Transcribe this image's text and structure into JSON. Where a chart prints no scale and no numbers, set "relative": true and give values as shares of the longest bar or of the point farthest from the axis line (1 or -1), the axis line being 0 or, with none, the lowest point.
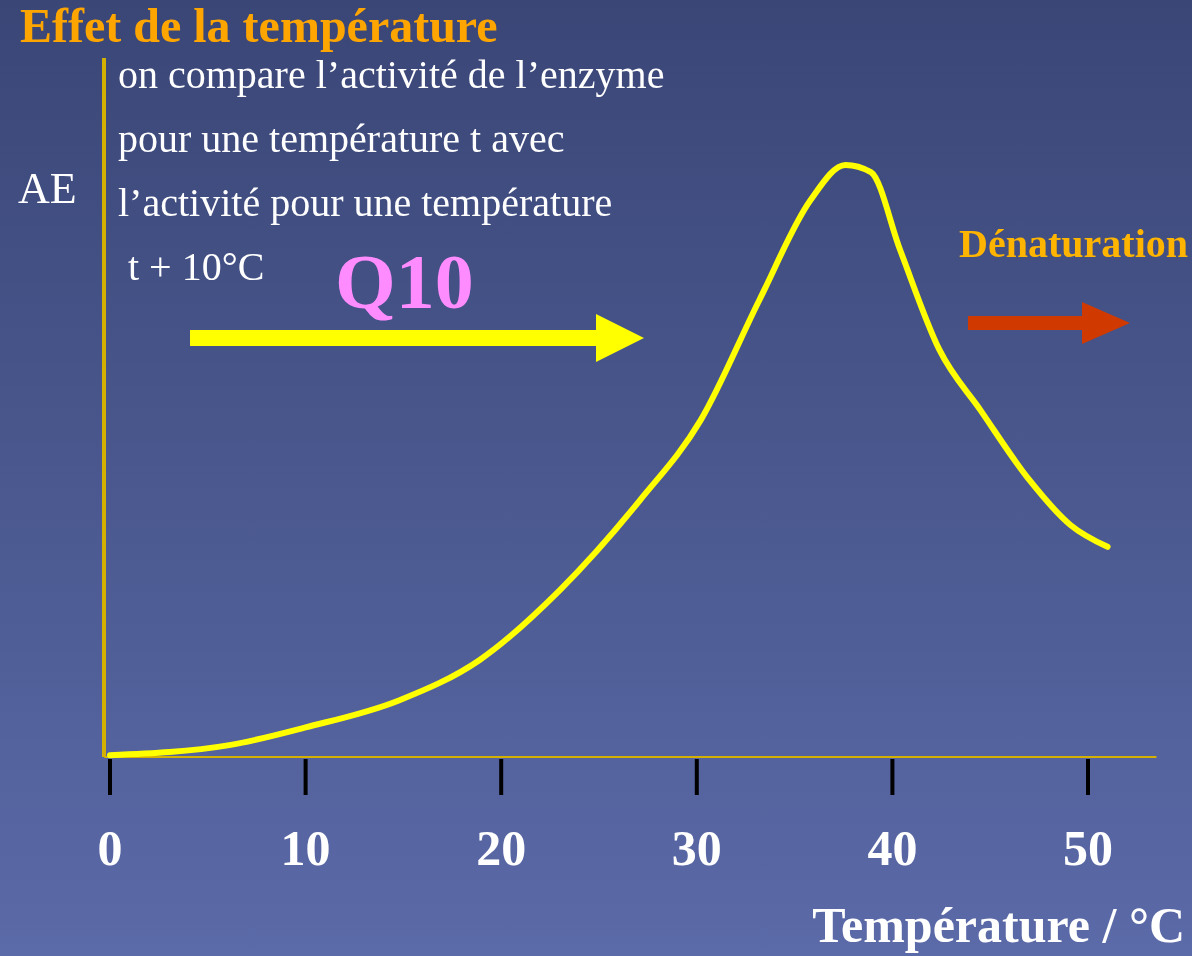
{
  "chart_data": {
    "type": "line",
    "title": "Effet de la température",
    "xlabel": "Température / °C",
    "ylabel": "AE",
    "relative": true,
    "xlim": [
      -0.3,
      53.5
    ],
    "xticks": [
      0,
      10,
      20,
      30,
      40,
      50
    ],
    "grid": false,
    "marker": "none",
    "line_style": "solid",
    "series": [
      {
        "color": "#ffff00",
        "x": [
          0,
          6.1,
          10,
          14.8,
          18.9,
          23,
          27.1,
          30.2,
          33.2,
          35.8,
          37.6,
          38.9,
          40.4,
          42.4,
          44.5,
          47,
          49.1,
          51
        ],
        "values": [
          0.003,
          0.02,
          0.05,
          0.096,
          0.164,
          0.282,
          0.434,
          0.569,
          0.772,
          0.94,
          1,
          0.988,
          0.856,
          0.688,
          0.586,
          0.468,
          0.392,
          0.355
        ]
      }
    ],
    "annotations": [
      "on compare l’activité de l’enzyme\npour une température t avec\nl’activité pour une température\n t + 10°C",
      "Q10",
      "Dénaturation"
    ]
  }
}
